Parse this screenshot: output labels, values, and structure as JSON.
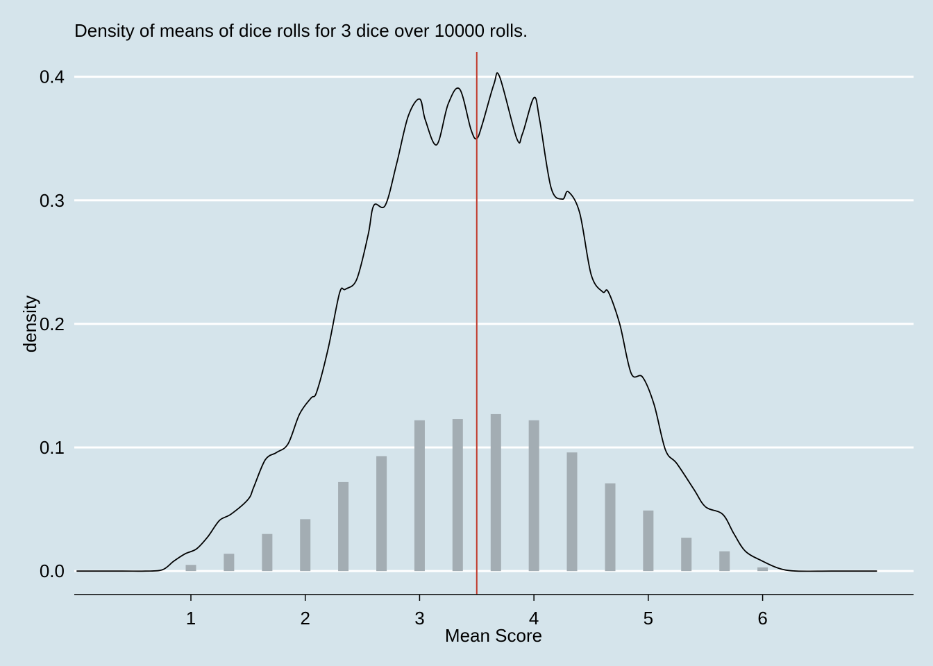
{
  "colors": {
    "background": "#d5e4eb",
    "gridline": "#ffffff",
    "bar": "#a3adb3",
    "density_line": "#000000",
    "mean_line": "#c0392b",
    "axis": "#000000"
  },
  "chart_data": {
    "type": "bar",
    "title": "Density of means of dice rolls for 3 dice over 10000 rolls.",
    "xlabel": "Mean Score",
    "ylabel": "density",
    "x_ticks": [
      1,
      2,
      3,
      4,
      5,
      6
    ],
    "y_ticks": [
      0.0,
      0.1,
      0.2,
      0.3,
      0.4
    ],
    "y_tick_labels": [
      "0.0",
      "0.1",
      "0.2",
      "0.3",
      "0.4"
    ],
    "xlim": [
      -0.02,
      7.32
    ],
    "ylim": [
      -0.019,
      0.42
    ],
    "grid": "horizontal",
    "mean_line_x": 3.5,
    "bars": {
      "x": [
        1.0,
        1.333,
        1.667,
        2.0,
        2.333,
        2.667,
        3.0,
        3.333,
        3.667,
        4.0,
        4.333,
        4.667,
        5.0,
        5.333,
        5.667,
        6.0
      ],
      "values": [
        0.005,
        0.014,
        0.03,
        0.042,
        0.072,
        0.093,
        0.122,
        0.123,
        0.127,
        0.122,
        0.096,
        0.071,
        0.049,
        0.027,
        0.016,
        0.003
      ]
    },
    "density": {
      "x": [
        0.0,
        0.4,
        0.6,
        0.75,
        0.85,
        0.95,
        1.05,
        1.15,
        1.25,
        1.35,
        1.5,
        1.55,
        1.65,
        1.75,
        1.85,
        1.95,
        2.05,
        2.1,
        2.2,
        2.3,
        2.35,
        2.45,
        2.55,
        2.6,
        2.7,
        2.8,
        2.9,
        3.0,
        3.05,
        3.15,
        3.25,
        3.35,
        3.45,
        3.5,
        3.55,
        3.65,
        3.7,
        3.85,
        3.9,
        4.0,
        4.05,
        4.15,
        4.25,
        4.3,
        4.4,
        4.5,
        4.6,
        4.65,
        4.75,
        4.85,
        4.95,
        5.05,
        5.15,
        5.25,
        5.4,
        5.5,
        5.65,
        5.75,
        5.85,
        6.0,
        6.15,
        6.3,
        6.6,
        7.0
      ],
      "y": [
        0.0,
        0.0,
        0.0,
        0.001,
        0.008,
        0.014,
        0.018,
        0.028,
        0.041,
        0.046,
        0.058,
        0.068,
        0.09,
        0.096,
        0.103,
        0.127,
        0.14,
        0.145,
        0.18,
        0.225,
        0.228,
        0.236,
        0.272,
        0.296,
        0.296,
        0.33,
        0.368,
        0.382,
        0.365,
        0.345,
        0.378,
        0.39,
        0.357,
        0.35,
        0.362,
        0.394,
        0.4,
        0.35,
        0.354,
        0.383,
        0.365,
        0.31,
        0.301,
        0.307,
        0.29,
        0.24,
        0.226,
        0.226,
        0.2,
        0.16,
        0.157,
        0.135,
        0.098,
        0.087,
        0.066,
        0.052,
        0.046,
        0.03,
        0.016,
        0.008,
        0.002,
        0.0,
        0.0,
        0.0
      ]
    }
  }
}
